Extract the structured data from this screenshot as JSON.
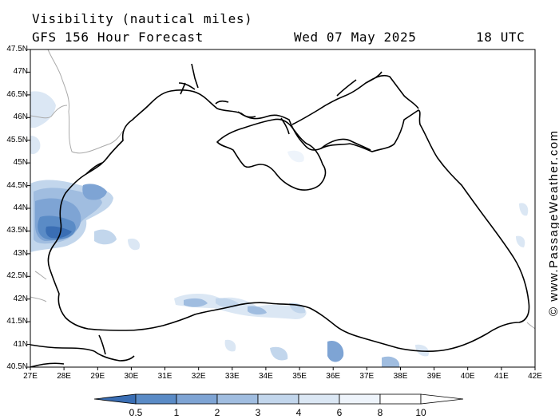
{
  "header": {
    "title": "Visibility (nautical miles)",
    "model": "GFS 156 Hour Forecast",
    "date": "Wed 07 May 2025",
    "time": "18 UTC"
  },
  "map": {
    "lat_labels": [
      "47.5N",
      "47N",
      "46.5N",
      "46N",
      "45.5N",
      "45N",
      "44.5N",
      "44N",
      "43.5N",
      "43N",
      "42.5N",
      "42N",
      "41.5N",
      "41N",
      "40.5N"
    ],
    "lon_labels": [
      "27E",
      "28E",
      "29E",
      "30E",
      "31E",
      "32E",
      "33E",
      "34E",
      "35E",
      "36E",
      "37E",
      "38E",
      "39E",
      "40E",
      "41E",
      "42E"
    ],
    "sea_color": "#ffffff",
    "coast_color": "#000000",
    "border_color": "#aaaaaa"
  },
  "legend": {
    "labels": [
      "0.5",
      "1",
      "2",
      "3",
      "4",
      "6",
      "8",
      "10"
    ],
    "colors": [
      "#3a6eb4",
      "#5a8bc6",
      "#7ea4d4",
      "#a0bde0",
      "#c2d6ec",
      "#dbe7f4",
      "#eef4fb"
    ]
  },
  "credit": "© www.PassageWeather.com"
}
